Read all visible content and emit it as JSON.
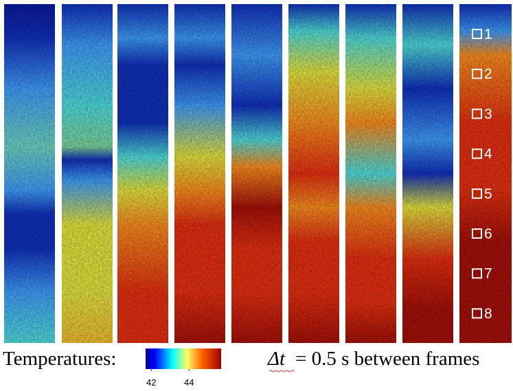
{
  "figure": {
    "markers": [
      "1",
      "2",
      "3",
      "4",
      "5",
      "6",
      "7",
      "8"
    ],
    "legend": {
      "label": "Temperatures:",
      "colorbar": {
        "lim": [
          41.7,
          45.7
        ],
        "ticks": [
          42,
          44
        ]
      }
    },
    "caption": {
      "symbol": "Δt",
      "text": "= 0.5 s between frames"
    }
  }
}
